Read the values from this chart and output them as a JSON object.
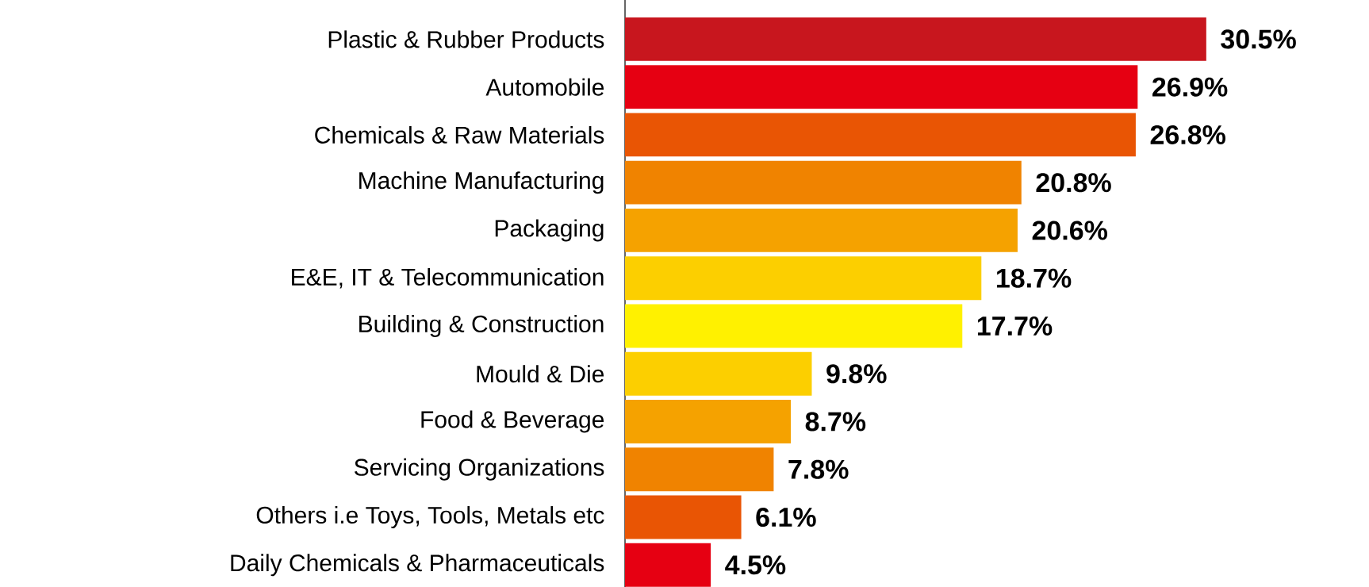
{
  "chart_data": {
    "type": "bar",
    "orientation": "horizontal",
    "categories": [
      "Plastic & Rubber Products",
      "Automobile",
      "Chemicals & Raw Materials",
      "Machine Manufacturing",
      "Packaging",
      "E&E, IT & Telecommunication",
      "Building & Construction",
      "Mould & Die",
      "Food & Beverage",
      "Servicing Organizations",
      "Others i.e Toys, Tools, Metals etc",
      "Daily Chemicals & Pharmaceuticals"
    ],
    "values": [
      30.5,
      26.9,
      26.8,
      20.8,
      20.6,
      18.7,
      17.7,
      9.8,
      8.7,
      7.8,
      6.1,
      4.5
    ],
    "value_labels": [
      "30.5%",
      "26.9%",
      "26.8%",
      "20.8%",
      "20.6%",
      "18.7%",
      "17.7%",
      "9.8%",
      "8.7%",
      "7.8%",
      "6.1%",
      "4.5%"
    ],
    "colors": [
      "#c8161e",
      "#e60012",
      "#e95504",
      "#f08300",
      "#f5a200",
      "#fccf00",
      "#fff100",
      "#fccf00",
      "#f5a200",
      "#f08300",
      "#e95504",
      "#e60012"
    ]
  }
}
